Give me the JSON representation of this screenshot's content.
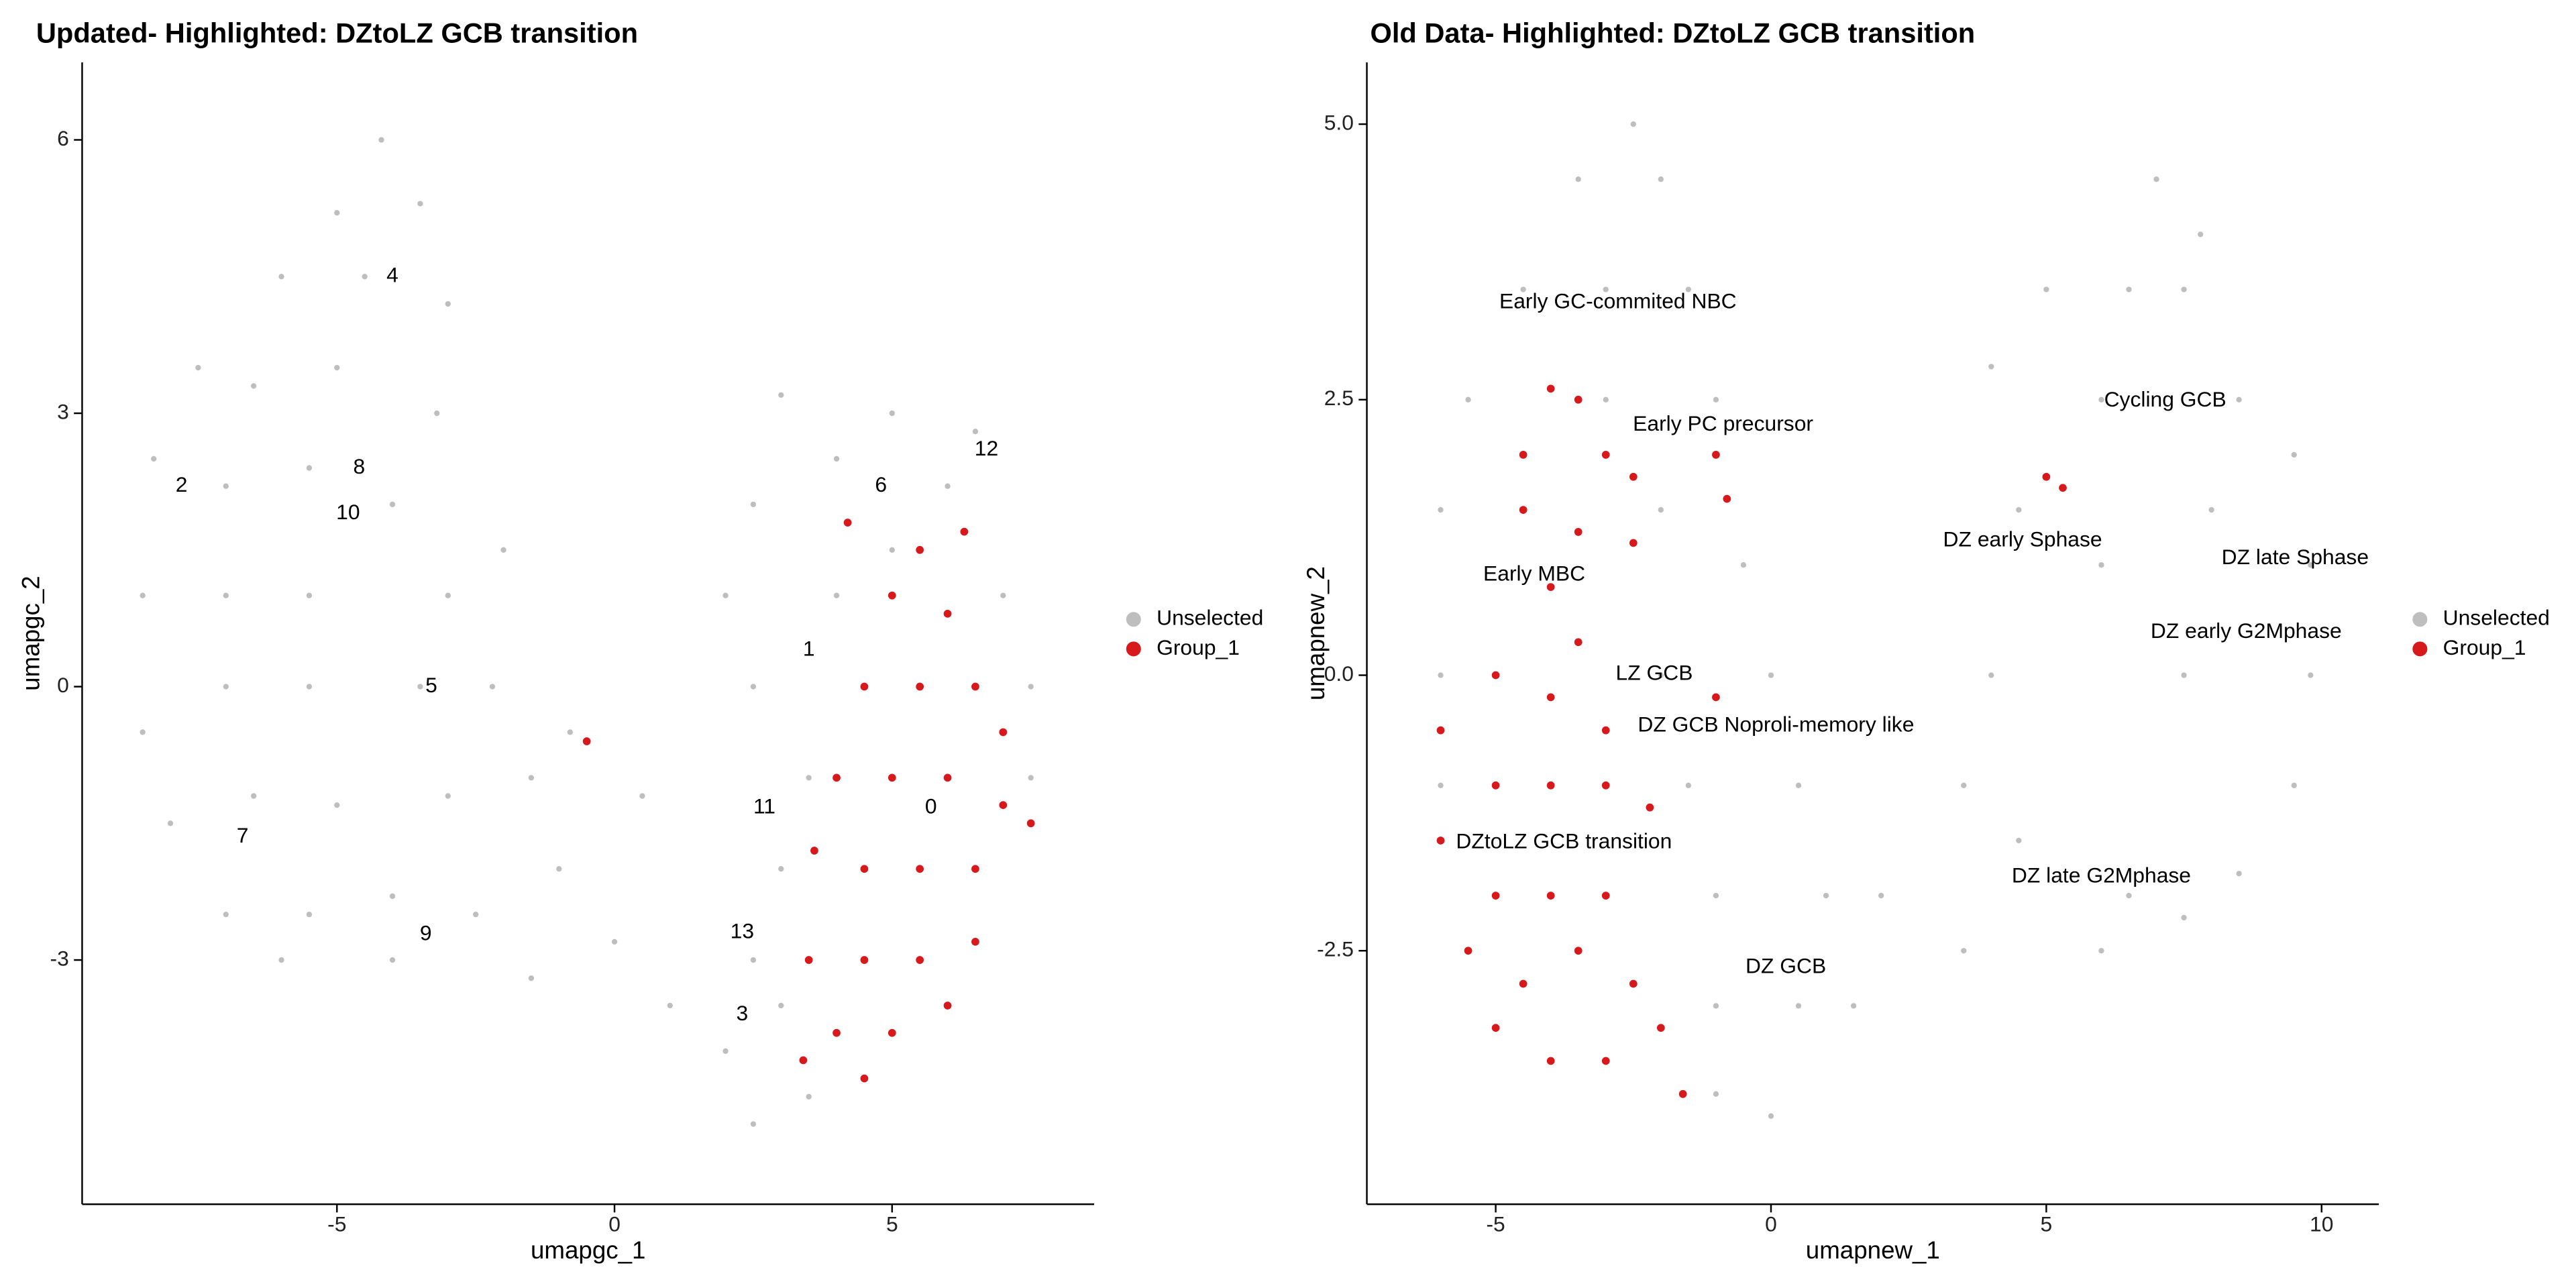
{
  "chart_data": [
    {
      "type": "scatter",
      "title": "Updated- Highlighted: DZtoLZ GCB transition",
      "x_label": "umapgc_1",
      "y_label": "umapgc_2",
      "xlim": [
        -9.59,
        8.64
      ],
      "ylim": [
        -5.68,
        6.85
      ],
      "xticks": [
        -5,
        0,
        5
      ],
      "yticks": [
        -3,
        0,
        3,
        6
      ],
      "series": [
        {
          "name": "Unselected",
          "color": "#bebebe",
          "x": [
            -4.2,
            -5,
            -3.5,
            -6,
            -4.5,
            -3,
            -7.5,
            -6.5,
            -5,
            -3.2,
            -8.3,
            -7,
            -5.5,
            -4,
            -8.5,
            -7,
            -5.5,
            -3,
            -2,
            -8.5,
            -7,
            -5.5,
            -3.5,
            -2.2,
            -8,
            -6.5,
            -5,
            -3,
            -1.5,
            -7,
            -5.5,
            -4,
            -2.5,
            -6,
            -4,
            -1,
            0,
            -1.5,
            1,
            2,
            2.5,
            3.5,
            2.5,
            3,
            3.5,
            2.5,
            2.5,
            3,
            4,
            5,
            6,
            6.5,
            4,
            5,
            7,
            7.5,
            7.5,
            2,
            3,
            0.5,
            -0.8
          ],
          "y": [
            6.0,
            5.2,
            5.3,
            4.5,
            4.5,
            4.2,
            3.5,
            3.3,
            3.5,
            3,
            2.5,
            2.2,
            2.4,
            2,
            1,
            1,
            1,
            1,
            1.5,
            -0.5,
            0,
            0,
            0,
            0,
            -1.5,
            -1.2,
            -1.3,
            -1.2,
            -1,
            -2.5,
            -2.5,
            -2.3,
            -2.5,
            -3,
            -3,
            -2,
            -2.8,
            -3.2,
            -3.5,
            -4,
            -4.8,
            -4.5,
            -3,
            -2,
            -1,
            0,
            2,
            3.2,
            2.5,
            3,
            2.2,
            2.8,
            1,
            1.5,
            1,
            0,
            -1,
            1,
            -3.5,
            -1.2,
            -0.5
          ]
        },
        {
          "name": "Group_1",
          "color": "#d7191c",
          "x": [
            4.2,
            5.5,
            6.3,
            5,
            6,
            4.5,
            5.5,
            6.5,
            7,
            4,
            5,
            6,
            7,
            3.6,
            4.5,
            5.5,
            6.5,
            7.5,
            3.5,
            4.5,
            5.5,
            6.5,
            4,
            5,
            6,
            3.4,
            4.5,
            -0.5
          ],
          "y": [
            1.8,
            1.5,
            1.7,
            1,
            0.8,
            0,
            0,
            0,
            -0.5,
            -1,
            -1,
            -1,
            -1.3,
            -1.8,
            -2,
            -2,
            -2,
            -1.5,
            -3,
            -3,
            -3,
            -2.8,
            -3.8,
            -3.8,
            -3.5,
            -4.1,
            -4.3,
            -0.6
          ]
        }
      ],
      "annotations": [
        {
          "text": "4",
          "x": -4,
          "y": 4.5
        },
        {
          "text": "8",
          "x": -4.6,
          "y": 2.4
        },
        {
          "text": "2",
          "x": -7.8,
          "y": 2.2
        },
        {
          "text": "10",
          "x": -4.8,
          "y": 1.9
        },
        {
          "text": "5",
          "x": -3.3,
          "y": 0
        },
        {
          "text": "7",
          "x": -6.7,
          "y": -1.65
        },
        {
          "text": "9",
          "x": -3.4,
          "y": -2.72
        },
        {
          "text": "6",
          "x": 4.8,
          "y": 2.2
        },
        {
          "text": "12",
          "x": 6.7,
          "y": 2.6
        },
        {
          "text": "1",
          "x": 3.5,
          "y": 0.4
        },
        {
          "text": "11",
          "x": 2.7,
          "y": -1.33
        },
        {
          "text": "0",
          "x": 5.7,
          "y": -1.33
        },
        {
          "text": "13",
          "x": 2.3,
          "y": -2.7
        },
        {
          "text": "3",
          "x": 2.3,
          "y": -3.6
        }
      ]
    },
    {
      "type": "scatter",
      "title": "Old Data- Highlighted: DZtoLZ GCB transition",
      "x_label": "umapnew_1",
      "y_label": "umapnew_2",
      "xlim": [
        -7.34,
        11.04
      ],
      "ylim": [
        -4.8,
        5.56
      ],
      "xticks": [
        -5,
        0,
        5,
        10
      ],
      "yticks": [
        {
          "value": -2.5,
          "label": "-2.5"
        },
        {
          "value": 0,
          "label": "0.0"
        },
        {
          "value": 2.5,
          "label": "2.5"
        },
        {
          "value": 5,
          "label": "5.0"
        }
      ],
      "series": [
        {
          "name": "Unselected",
          "color": "#bebebe",
          "x": [
            -2.5,
            -3.5,
            -2,
            -4.5,
            -3,
            -1.5,
            -5.5,
            -3,
            -1,
            -6,
            -2,
            -0.5,
            -6,
            -2,
            0,
            -6,
            -1.5,
            0.5,
            -1,
            1,
            2,
            -1,
            0.5,
            1.5,
            -1,
            0,
            3.5,
            4,
            4.5,
            4,
            4.5,
            6,
            6.5,
            6,
            6,
            6.5,
            7,
            7.5,
            7.8,
            8,
            8.5,
            9.5,
            9.8,
            9.8,
            9.5,
            8.5,
            7.5,
            7.5,
            5,
            3.5
          ],
          "y": [
            5,
            4.5,
            4.5,
            3.5,
            3.5,
            3.5,
            2.5,
            2.5,
            2.5,
            1.5,
            1.5,
            1,
            0,
            0,
            0,
            -1,
            -1,
            -1,
            -2,
            -2,
            -2,
            -3,
            -3,
            -3,
            -3.8,
            -4,
            -2.5,
            2.8,
            1.5,
            0,
            -1.5,
            -2.5,
            -2,
            1,
            2.5,
            3.5,
            4.5,
            3.5,
            4,
            1.5,
            2.5,
            2,
            1,
            0,
            -1,
            -1.8,
            -2.2,
            0,
            3.5,
            -1
          ]
        },
        {
          "name": "Group_1",
          "color": "#d7191c",
          "x": [
            -4,
            -3.5,
            -4.5,
            -3,
            -2.5,
            -1,
            -0.8,
            -4.5,
            -3.5,
            -2.5,
            -4,
            -3.5,
            -5,
            -4,
            -3,
            -6,
            -5,
            -4,
            -3,
            -2.2,
            -6,
            -5,
            -4,
            -3,
            -5.5,
            -4.5,
            -3.5,
            -2.5,
            -5,
            -4,
            -3,
            -2,
            -1.6,
            5,
            5.3,
            -1
          ],
          "y": [
            2.6,
            2.5,
            2,
            2,
            1.8,
            2,
            1.6,
            1.5,
            1.3,
            1.2,
            0.8,
            0.3,
            0,
            -0.2,
            -0.5,
            -0.5,
            -1,
            -1,
            -1,
            -1.2,
            -1.5,
            -2,
            -2,
            -2,
            -2.5,
            -2.8,
            -2.5,
            -2.8,
            -3.2,
            -3.5,
            -3.5,
            -3.2,
            -3.8,
            1.8,
            1.7,
            -0.2
          ]
        }
      ],
      "annotations": [
        {
          "text": "Early GC-commited NBC",
          "x": -2.78,
          "y": 3.38
        },
        {
          "text": "Early PC precursor",
          "x": -0.87,
          "y": 2.27
        },
        {
          "text": "Cycling GCB",
          "x": 7.16,
          "y": 2.49
        },
        {
          "text": "DZ early  Sphase",
          "x": 4.57,
          "y": 1.22
        },
        {
          "text": "DZ late Sphase",
          "x": 9.52,
          "y": 1.06
        },
        {
          "text": "DZ early G2Mphase",
          "x": 8.63,
          "y": 0.39
        },
        {
          "text": "Early MBC",
          "x": -4.3,
          "y": 0.91
        },
        {
          "text": "LZ GCB",
          "x": -2.12,
          "y": 0.01
        },
        {
          "text": "DZ GCB Noproli-memory like",
          "x": 0.09,
          "y": -0.46
        },
        {
          "text": "DZtoLZ GCB transition",
          "x": -3.76,
          "y": -1.52
        },
        {
          "text": "DZ late G2Mphase",
          "x": 6.0,
          "y": -1.83
        },
        {
          "text": "DZ GCB",
          "x": 0.27,
          "y": -2.65
        }
      ]
    }
  ]
}
